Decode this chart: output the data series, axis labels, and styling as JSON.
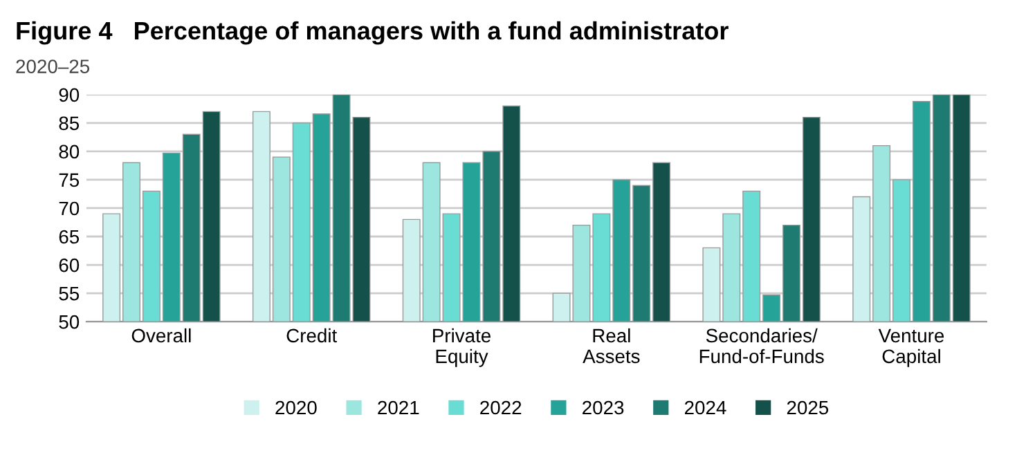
{
  "chart_data": {
    "type": "bar",
    "title": "Figure 4   Percentage of managers with a fund administrator",
    "subtitle": "2020–25",
    "categories": [
      "Overall",
      "Credit",
      "Private\nEquity",
      "Real\nAssets",
      "Secondaries/\nFund-of-Funds",
      "Venture\nCapital"
    ],
    "series": [
      {
        "name": "2020",
        "color": "#cdf1ee",
        "values": [
          69,
          87,
          68,
          55,
          63,
          72
        ]
      },
      {
        "name": "2021",
        "color": "#9de6e0",
        "values": [
          78,
          79,
          78,
          67,
          69,
          81
        ]
      },
      {
        "name": "2022",
        "color": "#69ddd4",
        "values": [
          73,
          85,
          69,
          69,
          73,
          75
        ]
      },
      {
        "name": "2023",
        "color": "#26a398",
        "values": [
          79.7,
          86.6,
          78,
          75,
          54.7,
          88.8
        ]
      },
      {
        "name": "2024",
        "color": "#1e7b72",
        "values": [
          83,
          90,
          80,
          74,
          67,
          90
        ]
      },
      {
        "name": "2025",
        "color": "#14514b",
        "values": [
          87,
          86,
          88,
          78,
          86,
          90
        ]
      }
    ],
    "ylim": [
      50,
      90
    ],
    "yticks": [
      50,
      55,
      60,
      65,
      70,
      75,
      80,
      85,
      90
    ],
    "grid": "y",
    "legend": "bottom"
  }
}
